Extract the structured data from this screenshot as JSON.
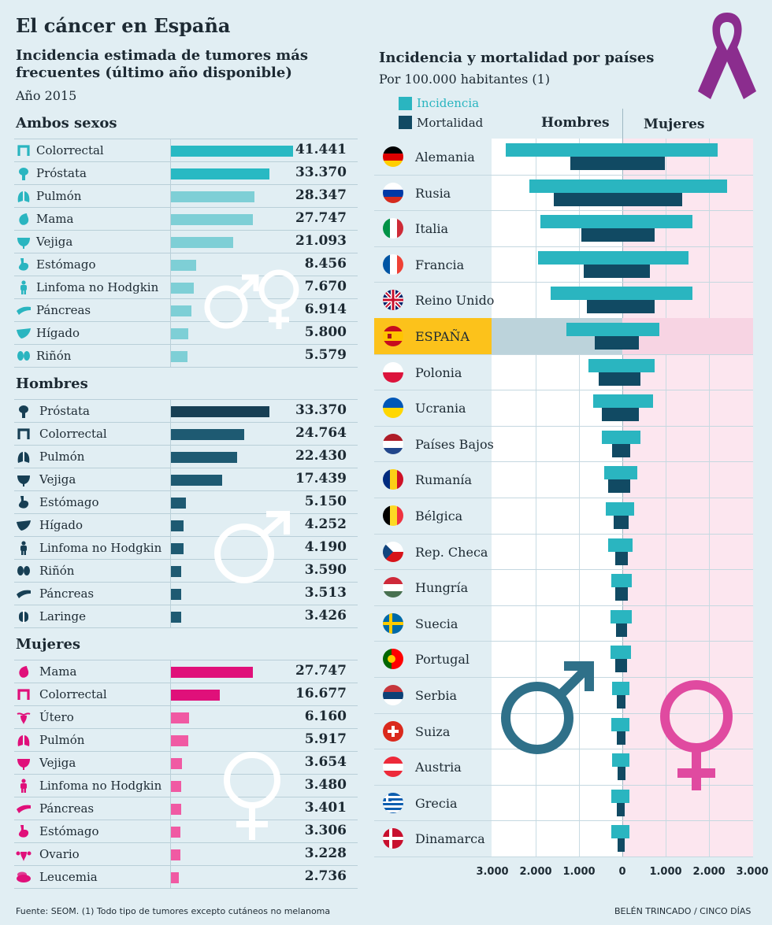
{
  "header": {
    "title": "El cáncer en España",
    "subtitle": "Incidencia estimada de tumores más frecuentes (último año disponible)",
    "year": "Año 2015"
  },
  "colors": {
    "both_top": "#28b9c3",
    "both": "#7ecfd6",
    "men": "#173f54",
    "men2": "#1e5a72",
    "women": "#e0107a",
    "women2": "#f05aa3",
    "incidence": "#2ab5c0",
    "mortality": "#114a63",
    "spain": "#fcc21b",
    "ribbon": "#8b2d8e"
  },
  "sections": {
    "both": {
      "title": "Ambos sexos",
      "rows": [
        {
          "label": "Colorrectal",
          "value": 41441,
          "display": "41.441",
          "icon": "colon-icon"
        },
        {
          "label": "Próstata",
          "value": 33370,
          "display": "33.370",
          "icon": "prostate-icon"
        },
        {
          "label": "Pulmón",
          "value": 28347,
          "display": "28.347",
          "icon": "lungs-icon"
        },
        {
          "label": "Mama",
          "value": 27747,
          "display": "27.747",
          "icon": "breast-icon"
        },
        {
          "label": "Vejiga",
          "value": 21093,
          "display": "21.093",
          "icon": "bladder-icon"
        },
        {
          "label": "Estómago",
          "value": 8456,
          "display": "8.456",
          "icon": "stomach-icon"
        },
        {
          "label": "Linfoma no Hodgkin",
          "value": 7670,
          "display": "7.670",
          "icon": "body-icon"
        },
        {
          "label": "Páncreas",
          "value": 6914,
          "display": "6.914",
          "icon": "pancreas-icon"
        },
        {
          "label": "Hígado",
          "value": 5800,
          "display": "5.800",
          "icon": "liver-icon"
        },
        {
          "label": "Riñón",
          "value": 5579,
          "display": "5.579",
          "icon": "kidney-icon"
        }
      ]
    },
    "men": {
      "title": "Hombres",
      "rows": [
        {
          "label": "Próstata",
          "value": 33370,
          "display": "33.370",
          "icon": "prostate-icon"
        },
        {
          "label": "Colorrectal",
          "value": 24764,
          "display": "24.764",
          "icon": "colon-icon"
        },
        {
          "label": "Pulmón",
          "value": 22430,
          "display": "22.430",
          "icon": "lungs-icon"
        },
        {
          "label": "Vejiga",
          "value": 17439,
          "display": "17.439",
          "icon": "bladder-icon"
        },
        {
          "label": "Estómago",
          "value": 5150,
          "display": "5.150",
          "icon": "stomach-icon"
        },
        {
          "label": "Hígado",
          "value": 4252,
          "display": "4.252",
          "icon": "liver-icon"
        },
        {
          "label": "Linfoma no Hodgkin",
          "value": 4190,
          "display": "4.190",
          "icon": "body-icon"
        },
        {
          "label": "Riñón",
          "value": 3590,
          "display": "3.590",
          "icon": "kidney-icon"
        },
        {
          "label": "Páncreas",
          "value": 3513,
          "display": "3.513",
          "icon": "pancreas-icon"
        },
        {
          "label": "Laringe",
          "value": 3426,
          "display": "3.426",
          "icon": "larynx-icon"
        }
      ]
    },
    "women": {
      "title": "Mujeres",
      "rows": [
        {
          "label": "Mama",
          "value": 27747,
          "display": "27.747",
          "icon": "breast-icon"
        },
        {
          "label": "Colorrectal",
          "value": 16677,
          "display": "16.677",
          "icon": "colon-icon"
        },
        {
          "label": "Útero",
          "value": 6160,
          "display": "6.160",
          "icon": "uterus-icon"
        },
        {
          "label": "Pulmón",
          "value": 5917,
          "display": "5.917",
          "icon": "lungs-icon"
        },
        {
          "label": "Vejiga",
          "value": 3654,
          "display": "3.654",
          "icon": "bladder-icon"
        },
        {
          "label": "Linfoma no Hodgkin",
          "value": 3480,
          "display": "3.480",
          "icon": "body-icon"
        },
        {
          "label": "Páncreas",
          "value": 3401,
          "display": "3.401",
          "icon": "pancreas-icon"
        },
        {
          "label": "Estómago",
          "value": 3306,
          "display": "3.306",
          "icon": "stomach-icon"
        },
        {
          "label": "Ovario",
          "value": 3228,
          "display": "3.228",
          "icon": "ovary-icon"
        },
        {
          "label": "Leucemia",
          "value": 2736,
          "display": "2.736",
          "icon": "blood-cells-icon"
        }
      ]
    }
  },
  "right": {
    "title": "Incidencia y mortalidad por países",
    "subtitle": "Por 100.000 habitantes (1)",
    "legend_incidence": "Incidencia",
    "legend_mortality": "Mortalidad",
    "men_header": "Hombres",
    "women_header": "Mujeres"
  },
  "chart_data": [
    {
      "type": "bar",
      "title": "Incidencia estimada de tumores más frecuentes (último año disponible) — Ambos sexos",
      "categories": [
        "Colorrectal",
        "Próstata",
        "Pulmón",
        "Mama",
        "Vejiga",
        "Estómago",
        "Linfoma no Hodgkin",
        "Páncreas",
        "Hígado",
        "Riñón"
      ],
      "values": [
        41441,
        33370,
        28347,
        27747,
        21093,
        8456,
        7670,
        6914,
        5800,
        5579
      ]
    },
    {
      "type": "bar",
      "title": "Hombres",
      "categories": [
        "Próstata",
        "Colorrectal",
        "Pulmón",
        "Vejiga",
        "Estómago",
        "Hígado",
        "Linfoma no Hodgkin",
        "Riñón",
        "Páncreas",
        "Laringe"
      ],
      "values": [
        33370,
        24764,
        22430,
        17439,
        5150,
        4252,
        4190,
        3590,
        3513,
        3426
      ]
    },
    {
      "type": "bar",
      "title": "Mujeres",
      "categories": [
        "Mama",
        "Colorrectal",
        "Útero",
        "Pulmón",
        "Vejiga",
        "Linfoma no Hodgkin",
        "Páncreas",
        "Estómago",
        "Ovario",
        "Leucemia"
      ],
      "values": [
        27747,
        16677,
        6160,
        5917,
        3654,
        3480,
        3401,
        3306,
        3228,
        2736
      ]
    },
    {
      "type": "bar",
      "title": "Incidencia y mortalidad por países",
      "ylabel": "Por 100.000 habitantes (1)",
      "categories": [
        "Alemania",
        "Rusia",
        "Italia",
        "Francia",
        "Reino Unido",
        "ESPAÑA",
        "Polonia",
        "Ucrania",
        "Países Bajos",
        "Rumanía",
        "Bélgica",
        "Rep. Checa",
        "Hungría",
        "Suecia",
        "Portugal",
        "Serbia",
        "Suiza",
        "Austria",
        "Grecia",
        "Dinamarca"
      ],
      "series": [
        {
          "name": "Incidencia Hombres",
          "values": [
            2700,
            2150,
            1900,
            1950,
            1650,
            1300,
            790,
            680,
            470,
            420,
            390,
            320,
            260,
            280,
            280,
            230,
            250,
            240,
            250,
            250
          ]
        },
        {
          "name": "Mortalidad Hombres",
          "values": [
            1200,
            1580,
            950,
            900,
            820,
            640,
            540,
            480,
            230,
            330,
            200,
            170,
            170,
            140,
            160,
            130,
            120,
            110,
            120,
            110
          ]
        },
        {
          "name": "Incidencia Mujeres",
          "values": [
            2200,
            2420,
            1620,
            1530,
            1620,
            850,
            750,
            700,
            420,
            350,
            280,
            240,
            220,
            220,
            200,
            170,
            170,
            160,
            160,
            160
          ]
        },
        {
          "name": "Mortalidad Mujeres",
          "values": [
            980,
            1380,
            740,
            630,
            740,
            380,
            420,
            390,
            180,
            190,
            150,
            120,
            120,
            100,
            100,
            80,
            70,
            70,
            60,
            60
          ]
        }
      ],
      "xlim": [
        -3000,
        3000
      ],
      "tick_labels": [
        "3.000",
        "2.000",
        "1.000",
        "0",
        "1.000",
        "2.000",
        "3.000"
      ],
      "highlight": "ESPAÑA"
    }
  ],
  "countries": [
    {
      "name": "Alemania",
      "flag": [
        "#000000",
        "#dd0000",
        "#ffce00"
      ],
      "dir": "h"
    },
    {
      "name": "Rusia",
      "flag": [
        "#ffffff",
        "#0039a6",
        "#d52b1e"
      ],
      "dir": "h"
    },
    {
      "name": "Italia",
      "flag": [
        "#009246",
        "#ffffff",
        "#ce2b37"
      ],
      "dir": "v"
    },
    {
      "name": "Francia",
      "flag": [
        "#0055a4",
        "#ffffff",
        "#ef4135"
      ],
      "dir": "v"
    },
    {
      "name": "Reino Unido",
      "flag": [
        "#012169",
        "#ffffff",
        "#c8102e"
      ],
      "dir": "uk"
    },
    {
      "name": "ESPAÑA",
      "flag": [
        "#c60b1e",
        "#ffc400",
        "#c60b1e"
      ],
      "dir": "es"
    },
    {
      "name": "Polonia",
      "flag": [
        "#ffffff",
        "#dc143c"
      ],
      "dir": "h2"
    },
    {
      "name": "Ucrania",
      "flag": [
        "#0057b7",
        "#ffd700"
      ],
      "dir": "h2"
    },
    {
      "name": "Países Bajos",
      "flag": [
        "#ae1c28",
        "#ffffff",
        "#21468b"
      ],
      "dir": "h"
    },
    {
      "name": "Rumanía",
      "flag": [
        "#002b7f",
        "#fcd116",
        "#ce1126"
      ],
      "dir": "v"
    },
    {
      "name": "Bélgica",
      "flag": [
        "#000000",
        "#fdda24",
        "#ef3340"
      ],
      "dir": "v"
    },
    {
      "name": "Rep. Checa",
      "flag": [
        "#ffffff",
        "#d7141a",
        "#11457e"
      ],
      "dir": "cz"
    },
    {
      "name": "Hungría",
      "flag": [
        "#ce2939",
        "#ffffff",
        "#477050"
      ],
      "dir": "h"
    },
    {
      "name": "Suecia",
      "flag": [
        "#006aa7",
        "#fecc00"
      ],
      "dir": "nordic"
    },
    {
      "name": "Portugal",
      "flag": [
        "#006600",
        "#ff0000"
      ],
      "dir": "pt"
    },
    {
      "name": "Serbia",
      "flag": [
        "#c6363c",
        "#0c4076",
        "#ffffff"
      ],
      "dir": "h"
    },
    {
      "name": "Suiza",
      "flag": [
        "#da291c",
        "#ffffff"
      ],
      "dir": "ch"
    },
    {
      "name": "Austria",
      "flag": [
        "#ed2939",
        "#ffffff",
        "#ed2939"
      ],
      "dir": "h"
    },
    {
      "name": "Grecia",
      "flag": [
        "#0d5eaf",
        "#ffffff"
      ],
      "dir": "gr"
    },
    {
      "name": "Dinamarca",
      "flag": [
        "#c8102e",
        "#ffffff"
      ],
      "dir": "nordic"
    }
  ],
  "footer": {
    "source": "Fuente: SEOM. (1) Todo tipo de tumores excepto cutáneos no melanoma",
    "credit": "BELÉN TRINCADO / CINCO DÍAS"
  }
}
